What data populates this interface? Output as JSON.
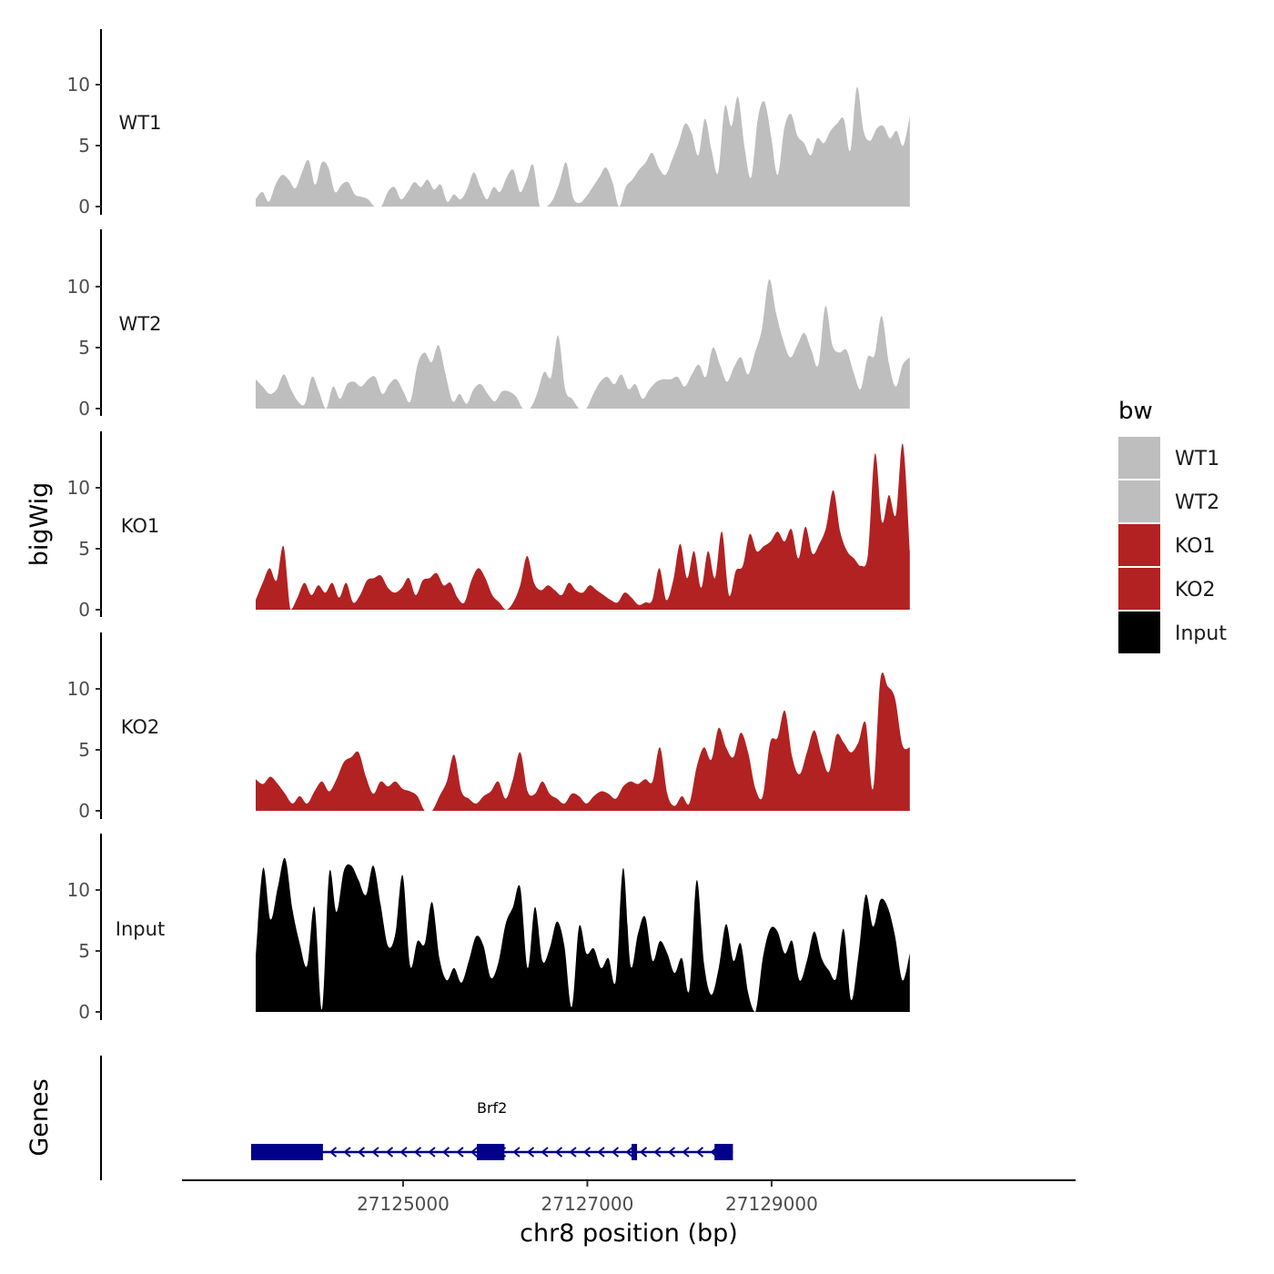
{
  "chart_data": {
    "type": "area",
    "ylabel": "bigWig",
    "xlabel": "chr8 position (bp)",
    "xlim": [
      27122600,
      27132300
    ],
    "ylim": [
      0,
      14
    ],
    "yticks": [
      0,
      5,
      10
    ],
    "xticks": [
      27125000,
      27127000,
      27129000
    ],
    "xtick_labels": [
      "27125000",
      "27127000",
      "27129000"
    ],
    "x_start": 27123400,
    "x_end": 27130500,
    "legend": {
      "title": "bw",
      "entries": [
        {
          "name": "WT1",
          "color": "#bebebe"
        },
        {
          "name": "WT2",
          "color": "#bebebe"
        },
        {
          "name": "KO1",
          "color": "#b22222"
        },
        {
          "name": "KO2",
          "color": "#b22222"
        },
        {
          "name": "Input",
          "color": "#000000"
        }
      ]
    },
    "series": [
      {
        "name": "WT1",
        "color": "#bebebe",
        "values": [
          0.6,
          1.2,
          0.4,
          1.8,
          2.6,
          2.2,
          1.5,
          2.8,
          3.8,
          1.8,
          3.6,
          3.2,
          1.2,
          1.8,
          2.0,
          1.0,
          0.8,
          0.6,
          0.0,
          0.0,
          1.2,
          1.6,
          0.6,
          1.2,
          2.0,
          1.6,
          2.2,
          1.4,
          1.8,
          0.4,
          1.0,
          0.6,
          1.4,
          2.8,
          1.6,
          0.6,
          1.6,
          1.2,
          2.4,
          3.0,
          1.2,
          2.2,
          3.4,
          0.0,
          0.0,
          0.6,
          2.0,
          3.6,
          0.8,
          0.3,
          0.8,
          1.6,
          2.4,
          3.2,
          2.0,
          0.0,
          1.6,
          2.2,
          3.0,
          3.6,
          4.4,
          3.2,
          2.6,
          3.8,
          5.2,
          6.8,
          6.0,
          4.2,
          7.2,
          4.6,
          2.8,
          8.2,
          6.6,
          9.0,
          4.8,
          2.4,
          7.2,
          8.6,
          5.8,
          2.6,
          6.4,
          7.6,
          5.8,
          5.2,
          4.2,
          5.6,
          5.2,
          6.2,
          6.8,
          7.2,
          4.6,
          9.8,
          6.2,
          5.4,
          6.4,
          6.6,
          5.6,
          6.2,
          5.0,
          7.4
        ]
      },
      {
        "name": "WT2",
        "color": "#bebebe",
        "values": [
          2.4,
          1.8,
          1.2,
          1.6,
          2.8,
          1.6,
          0.6,
          0.4,
          2.6,
          1.4,
          0.0,
          1.8,
          0.8,
          2.0,
          2.2,
          1.8,
          2.4,
          2.6,
          1.2,
          2.0,
          2.4,
          1.4,
          0.6,
          3.6,
          4.6,
          3.8,
          5.2,
          2.8,
          0.6,
          1.2,
          0.4,
          1.6,
          2.0,
          1.2,
          0.6,
          1.4,
          1.4,
          1.0,
          0.0,
          0.0,
          1.2,
          3.0,
          2.6,
          6.0,
          1.6,
          0.8,
          0.0,
          0.0,
          1.2,
          2.2,
          2.6,
          2.0,
          2.8,
          1.6,
          2.0,
          0.8,
          1.6,
          2.2,
          2.4,
          2.4,
          2.6,
          1.8,
          2.8,
          3.6,
          2.6,
          5.0,
          3.6,
          2.2,
          3.4,
          4.2,
          2.8,
          4.6,
          6.6,
          10.6,
          7.8,
          5.6,
          4.2,
          5.2,
          6.2,
          4.8,
          3.6,
          8.4,
          5.2,
          4.6,
          4.8,
          3.0,
          1.6,
          4.2,
          4.4,
          7.6,
          3.8,
          1.8,
          3.6,
          4.2
        ]
      },
      {
        "name": "KO1",
        "color": "#b22222",
        "values": [
          0.8,
          2.2,
          3.4,
          2.4,
          5.2,
          0.0,
          1.0,
          2.2,
          1.2,
          2.0,
          1.4,
          2.2,
          1.0,
          2.2,
          0.6,
          1.2,
          2.4,
          2.6,
          2.8,
          1.8,
          1.4,
          1.8,
          2.6,
          1.2,
          2.4,
          2.6,
          3.0,
          2.0,
          2.2,
          1.0,
          0.6,
          2.4,
          3.4,
          2.6,
          1.2,
          0.6,
          0.0,
          0.6,
          2.0,
          4.4,
          2.2,
          1.6,
          2.0,
          1.6,
          1.2,
          2.2,
          1.6,
          1.4,
          2.0,
          1.6,
          1.2,
          0.8,
          0.6,
          1.4,
          1.0,
          0.4,
          0.6,
          0.8,
          3.4,
          0.8,
          2.4,
          5.4,
          2.6,
          4.8,
          1.8,
          4.8,
          2.6,
          6.4,
          1.2,
          3.2,
          3.6,
          6.2,
          4.8,
          5.2,
          5.6,
          6.4,
          5.6,
          6.6,
          4.2,
          6.8,
          4.6,
          5.4,
          6.8,
          9.8,
          6.4,
          4.8,
          4.2,
          3.6,
          4.6,
          12.8,
          7.2,
          9.4,
          7.8,
          13.6,
          4.8
        ]
      },
      {
        "name": "KO2",
        "color": "#b22222",
        "values": [
          2.6,
          2.2,
          2.8,
          2.2,
          1.4,
          0.6,
          1.2,
          0.6,
          1.6,
          2.4,
          1.6,
          2.6,
          4.0,
          4.4,
          4.8,
          2.8,
          1.4,
          2.4,
          2.0,
          2.4,
          1.8,
          1.6,
          1.2,
          0.0,
          0.0,
          1.2,
          2.4,
          4.6,
          1.6,
          1.0,
          0.6,
          1.2,
          1.6,
          2.4,
          1.0,
          2.6,
          4.8,
          1.6,
          1.4,
          2.4,
          1.4,
          1.0,
          0.6,
          1.4,
          1.2,
          0.6,
          1.2,
          1.6,
          1.4,
          1.0,
          2.0,
          2.4,
          2.2,
          2.6,
          2.4,
          5.2,
          1.4,
          0.4,
          1.2,
          0.6,
          3.6,
          5.2,
          4.2,
          6.8,
          5.2,
          4.4,
          6.4,
          4.8,
          1.8,
          1.2,
          5.6,
          6.0,
          8.2,
          4.4,
          3.0,
          4.8,
          6.6,
          4.6,
          3.2,
          6.2,
          5.6,
          4.8,
          5.6,
          7.2,
          1.8,
          10.8,
          10.2,
          9.2,
          5.4,
          5.2
        ]
      },
      {
        "name": "Input",
        "color": "#000000",
        "values": [
          4.6,
          11.8,
          7.6,
          10.2,
          12.6,
          8.4,
          5.6,
          3.8,
          8.6,
          0.2,
          11.4,
          8.2,
          11.6,
          12.0,
          10.8,
          9.6,
          12.0,
          8.8,
          5.4,
          6.4,
          11.2,
          3.8,
          5.8,
          5.6,
          9.0,
          4.4,
          2.6,
          3.6,
          2.4,
          4.2,
          6.2,
          5.4,
          2.8,
          4.0,
          7.2,
          8.6,
          10.2,
          3.6,
          8.6,
          4.2,
          5.2,
          7.4,
          5.4,
          0.4,
          7.0,
          4.8,
          5.2,
          3.6,
          4.4,
          2.6,
          11.8,
          3.8,
          6.4,
          7.8,
          4.2,
          5.8,
          4.8,
          3.2,
          4.4,
          1.8,
          10.8,
          4.0,
          1.4,
          3.6,
          7.2,
          4.2,
          5.6,
          1.6,
          0.0,
          4.4,
          6.8,
          6.6,
          4.8,
          5.8,
          2.6,
          4.2,
          6.6,
          4.4,
          3.4,
          2.8,
          6.8,
          1.0,
          4.6,
          9.6,
          7.0,
          9.2,
          8.6,
          6.2,
          2.6,
          4.8
        ]
      }
    ],
    "gene_track": {
      "label": "Genes",
      "gene_name": "Brf2",
      "strand": "-",
      "start": 27123350,
      "end": 27128580,
      "exons": [
        [
          27123350,
          27124130
        ],
        [
          27125800,
          27126100
        ],
        [
          27127480,
          27127530
        ],
        [
          27128380,
          27128580
        ]
      ],
      "color": "#00008b"
    }
  }
}
